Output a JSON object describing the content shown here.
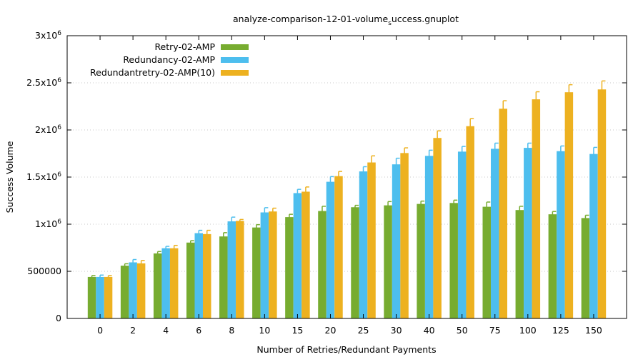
{
  "chart_data": {
    "type": "bar",
    "title": "analyze-comparison-12-01-volume",
    "title_subscript": "s",
    "title_rest": "uccess.gnuplot",
    "xlabel": "Number of Retries/Redundant Payments",
    "ylabel": "Success Volume",
    "categories": [
      "0",
      "2",
      "4",
      "6",
      "8",
      "10",
      "15",
      "20",
      "25",
      "30",
      "40",
      "50",
      "75",
      "100",
      "125",
      "150"
    ],
    "ylim": [
      0,
      3000000
    ],
    "y_ticks": [
      {
        "value": 0,
        "base": "0",
        "exp": ""
      },
      {
        "value": 500000,
        "base": "500000",
        "exp": ""
      },
      {
        "value": 1000000,
        "base": "1x10",
        "exp": "6"
      },
      {
        "value": 1500000,
        "base": "1.5x10",
        "exp": "6"
      },
      {
        "value": 2000000,
        "base": "2x10",
        "exp": "6"
      },
      {
        "value": 2500000,
        "base": "2.5x10",
        "exp": "6"
      },
      {
        "value": 3000000,
        "base": "3x10",
        "exp": "6"
      }
    ],
    "grid": true,
    "legend_position": "top-left",
    "series": [
      {
        "name": "Retry-02-AMP",
        "color": "#77ac30",
        "values": [
          440000,
          560000,
          690000,
          805000,
          870000,
          965000,
          1075000,
          1140000,
          1180000,
          1200000,
          1215000,
          1225000,
          1185000,
          1150000,
          1105000,
          1065000
        ],
        "errors": [
          15000,
          20000,
          20000,
          20000,
          40000,
          30000,
          30000,
          50000,
          20000,
          40000,
          30000,
          30000,
          50000,
          40000,
          30000,
          30000
        ]
      },
      {
        "name": "Redundancy-02-AMP",
        "color": "#4dbeee",
        "values": [
          440000,
          595000,
          745000,
          905000,
          1030000,
          1125000,
          1330000,
          1450000,
          1560000,
          1635000,
          1725000,
          1770000,
          1800000,
          1810000,
          1775000,
          1745000
        ],
        "errors": [
          20000,
          30000,
          20000,
          30000,
          45000,
          50000,
          40000,
          55000,
          50000,
          65000,
          60000,
          55000,
          60000,
          50000,
          55000,
          70000
        ]
      },
      {
        "name": "Redundantretry-02-AMP(10)",
        "color": "#edb120",
        "values": [
          440000,
          585000,
          745000,
          895000,
          1035000,
          1135000,
          1345000,
          1510000,
          1655000,
          1755000,
          1915000,
          2040000,
          2225000,
          2325000,
          2400000,
          2430000
        ],
        "errors": [
          15000,
          30000,
          30000,
          40000,
          15000,
          35000,
          50000,
          50000,
          70000,
          55000,
          75000,
          80000,
          85000,
          80000,
          80000,
          90000
        ]
      }
    ]
  }
}
